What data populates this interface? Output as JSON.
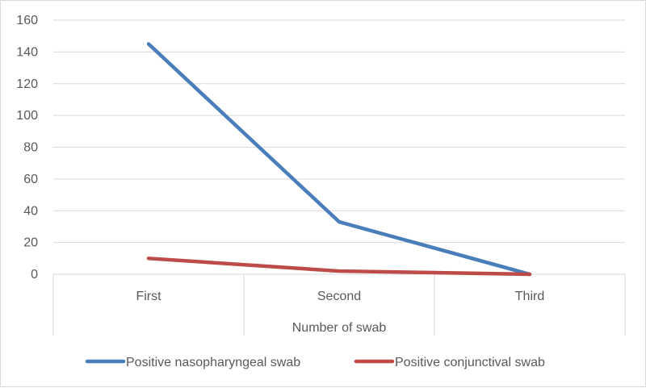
{
  "chart_data": {
    "type": "line",
    "title": "",
    "xlabel": "Number of swab",
    "ylabel": "",
    "categories": [
      "First",
      "Second",
      "Third"
    ],
    "ylim": [
      0,
      160
    ],
    "yticks": [
      0,
      20,
      40,
      60,
      80,
      100,
      120,
      140,
      160
    ],
    "grid": true,
    "legend_position": "bottom",
    "series": [
      {
        "name": "Positive nasopharyngeal swab",
        "values": [
          145,
          33,
          0
        ],
        "color": "#4a7ebb"
      },
      {
        "name": "Positive conjunctival swab",
        "values": [
          10,
          2,
          0
        ],
        "color": "#be4b48"
      }
    ]
  }
}
